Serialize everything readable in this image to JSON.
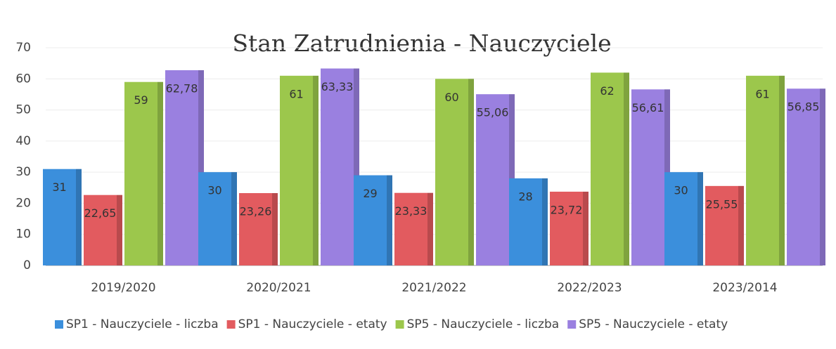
{
  "chart_data": {
    "type": "bar",
    "title": "Stan Zatrudnienia - Nauczyciele",
    "categories": [
      "2019/2020",
      "2020/2021",
      "2021/2022",
      "2022/2023",
      "2023/2014"
    ],
    "series": [
      {
        "name": "SP1 - Nauczyciele - liczba",
        "color": "#3b8fdc",
        "values": [
          31,
          30,
          29,
          28,
          30
        ]
      },
      {
        "name": "SP1 - Nauczyciele - etaty",
        "color": "#e25b5f",
        "values": [
          22.65,
          23.26,
          23.33,
          23.72,
          25.55
        ],
        "value_labels": [
          "22,65",
          "23,26",
          "23,33",
          "23,72",
          "25,55"
        ]
      },
      {
        "name": "SP5 - Nauczyciele - liczba",
        "color": "#9cc74c",
        "values": [
          59,
          61,
          60,
          62,
          61
        ]
      },
      {
        "name": "SP5 - Nauczyciele - etaty",
        "color": "#9a80e0",
        "values": [
          62.78,
          63.33,
          55.06,
          56.61,
          56.85
        ],
        "value_labels": [
          "62,78",
          "63,33",
          "55,06",
          "56,61",
          "56,85"
        ]
      }
    ],
    "ylim": [
      0,
      70
    ],
    "yticks": [
      0,
      10,
      20,
      30,
      40,
      50,
      60,
      70
    ],
    "grid": true,
    "legend": "bottom"
  }
}
